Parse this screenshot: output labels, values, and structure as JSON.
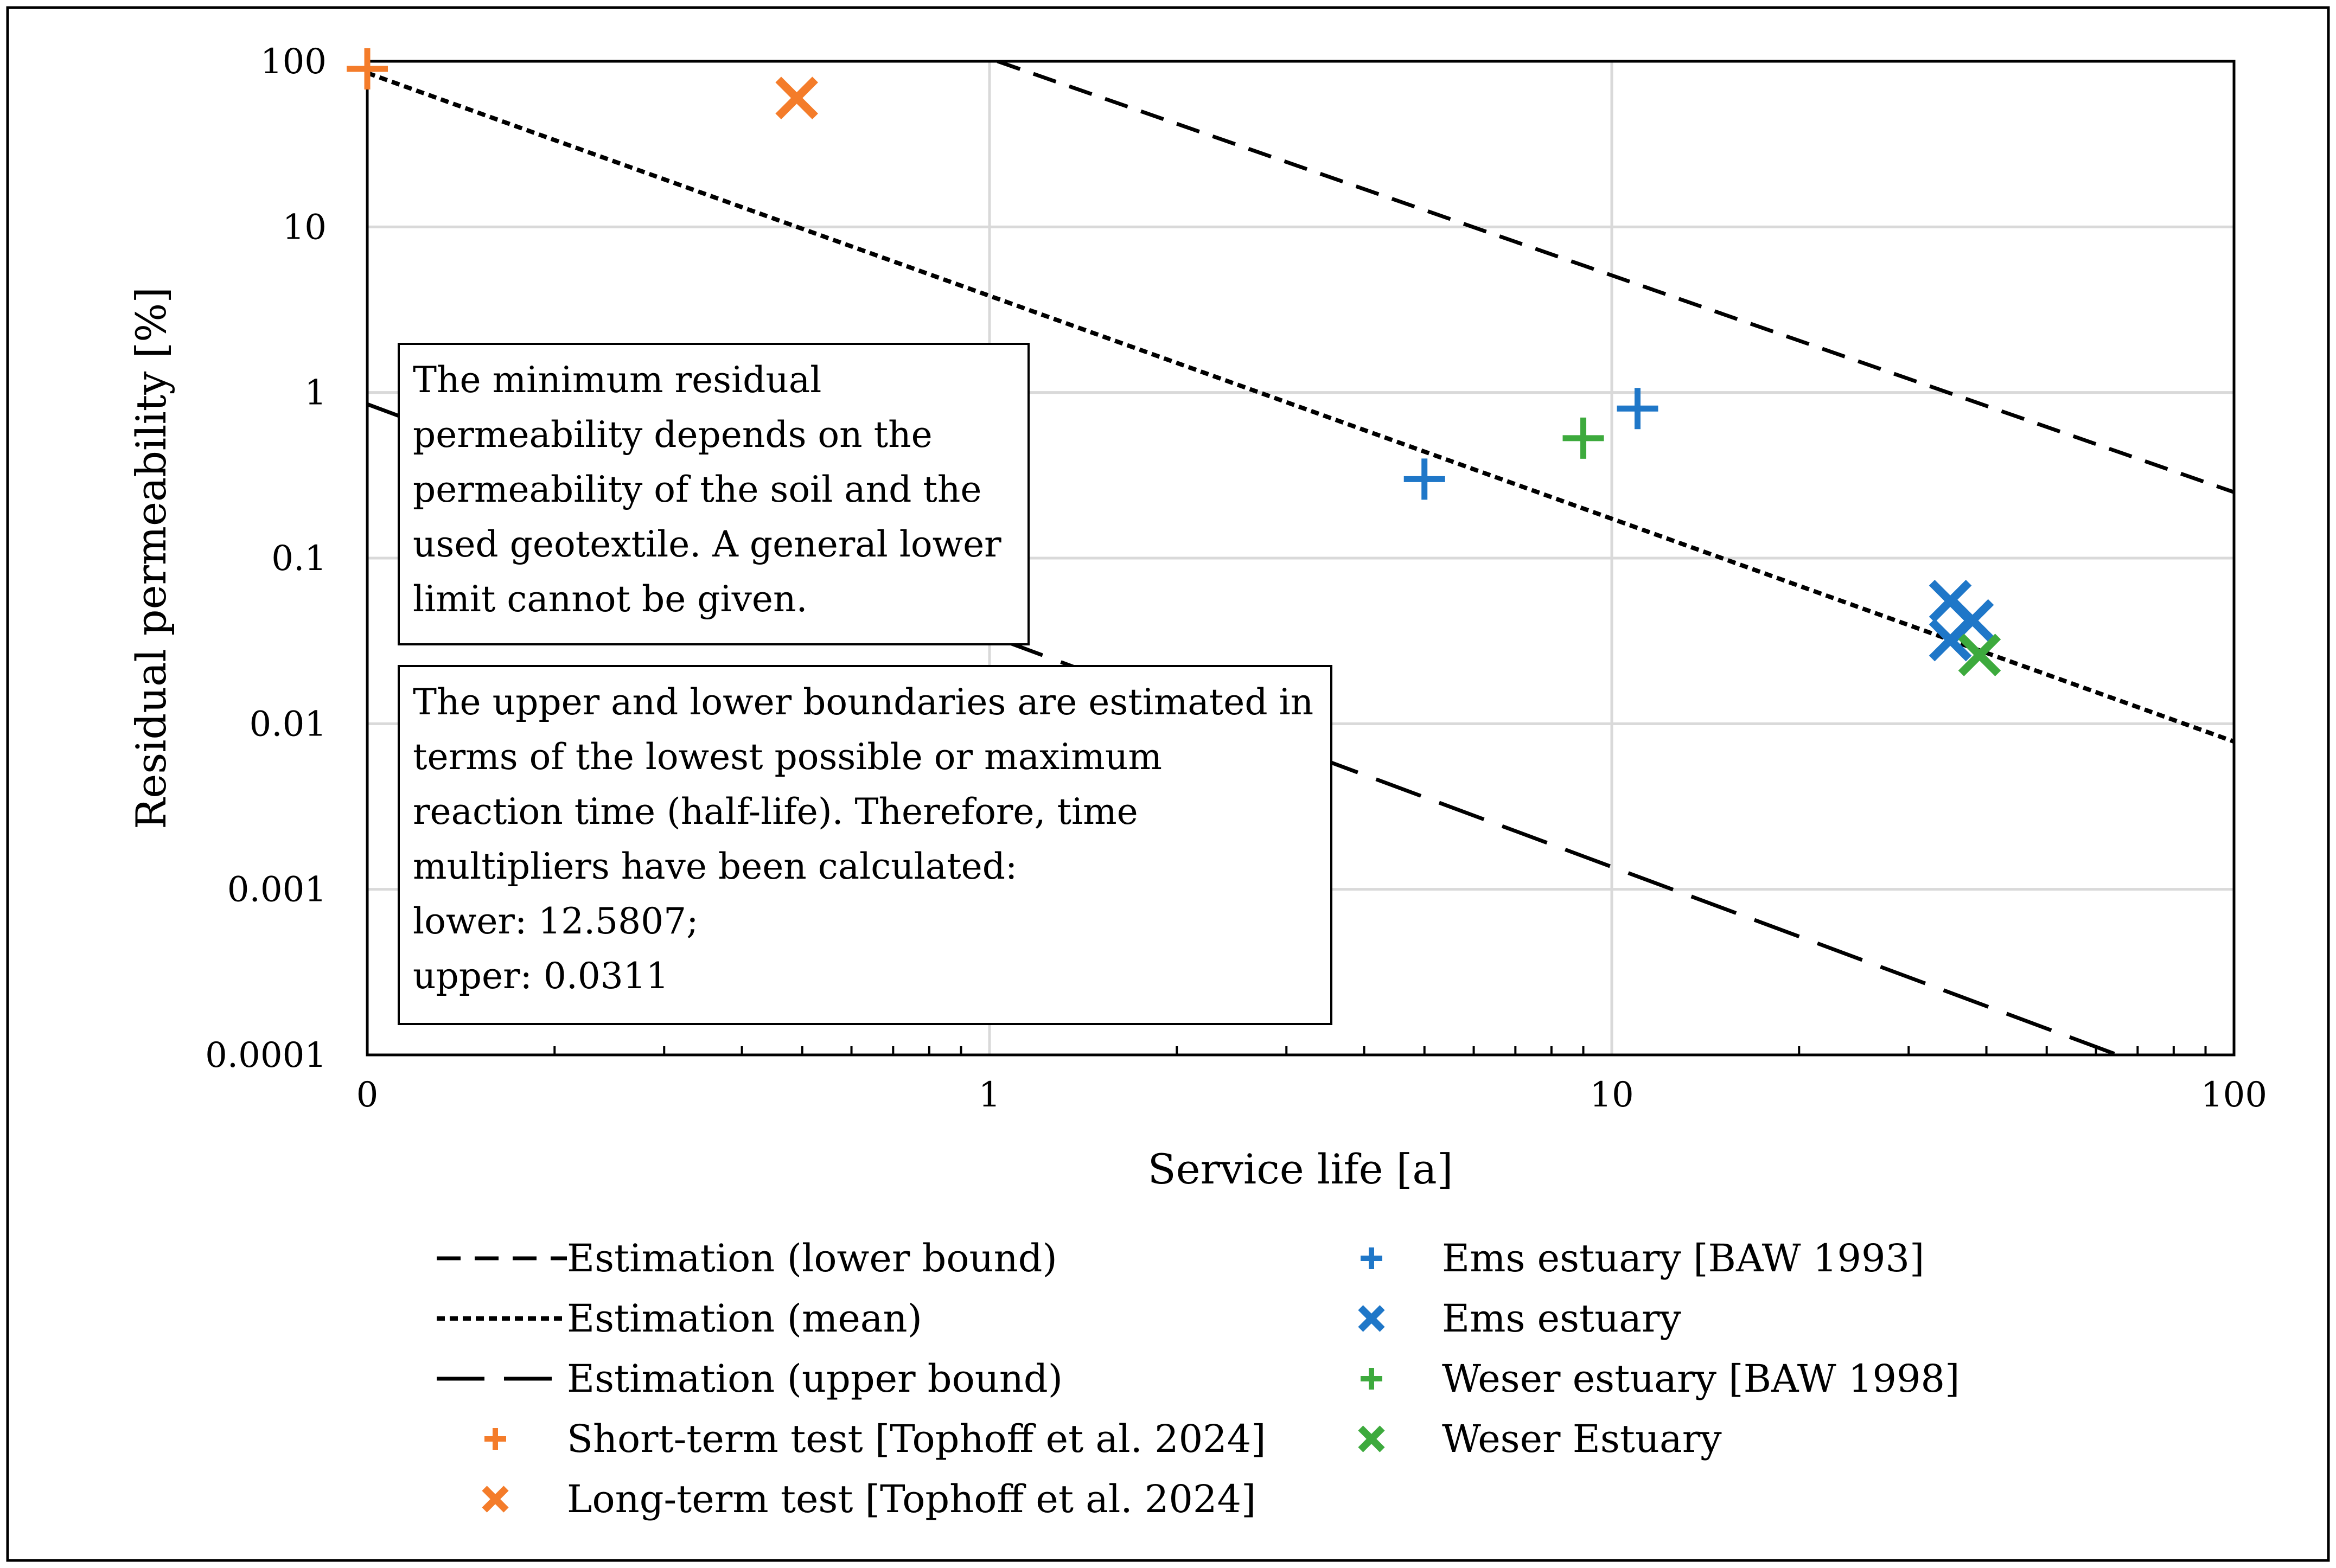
{
  "chart_data": {
    "type": "scatter",
    "xscale": "log",
    "yscale": "log",
    "xlabel": "Service life [a]",
    "ylabel": "Residual permeability [%]",
    "xlim": [
      0.1,
      100
    ],
    "ylim": [
      0.0001,
      100
    ],
    "xticks": [
      {
        "value": 0.1,
        "label": "0"
      },
      {
        "value": 1,
        "label": "1"
      },
      {
        "value": 10,
        "label": "10"
      },
      {
        "value": 100,
        "label": "100"
      }
    ],
    "yticks": [
      {
        "value": 100,
        "label": "100"
      },
      {
        "value": 10,
        "label": "10"
      },
      {
        "value": 1,
        "label": "1"
      },
      {
        "value": 0.1,
        "label": "0.1"
      },
      {
        "value": 0.01,
        "label": "0.01"
      },
      {
        "value": 0.001,
        "label": "0.001"
      },
      {
        "value": 0.0001,
        "label": "0.0001"
      }
    ],
    "grid": true,
    "lines": [
      {
        "name": "Estimation (lower bound)",
        "style": "dashed",
        "color": "#000000",
        "points": [
          [
            1.03,
            100
          ],
          [
            100,
            0.25
          ]
        ]
      },
      {
        "name": "Estimation (mean)",
        "style": "dotted",
        "color": "#000000",
        "points": [
          [
            0.1,
            85
          ],
          [
            100,
            0.0078
          ]
        ]
      },
      {
        "name": "Estimation (upper bound)",
        "style": "longdash",
        "color": "#000000",
        "points": [
          [
            0.1,
            0.85
          ],
          [
            65,
            0.0001
          ]
        ]
      }
    ],
    "series": [
      {
        "name": "Short-term test [Tophoff et al. 2024]",
        "marker": "plus",
        "color": "#F47C2A",
        "points": [
          [
            0.1,
            90
          ]
        ]
      },
      {
        "name": "Long-term test  [Tophoff et al. 2024]",
        "marker": "x",
        "color": "#F47C2A",
        "points": [
          [
            0.49,
            60
          ]
        ]
      },
      {
        "name": "Ems estuary [BAW 1993]",
        "marker": "plus",
        "color": "#1F77C8",
        "points": [
          [
            5,
            0.3
          ],
          [
            11,
            0.8
          ]
        ]
      },
      {
        "name": "Ems estuary",
        "marker": "x",
        "color": "#1F77C8",
        "points": [
          [
            35,
            0.055
          ],
          [
            38,
            0.042
          ],
          [
            35,
            0.032
          ]
        ]
      },
      {
        "name": "Weser estuary [BAW 1998]",
        "marker": "plus",
        "color": "#3DAA3D",
        "points": [
          [
            9,
            0.53
          ]
        ]
      },
      {
        "name": "Weser Estuary",
        "marker": "x",
        "color": "#3DAA3D",
        "points": [
          [
            39,
            0.026
          ]
        ]
      }
    ],
    "annotations": [
      {
        "id": "note1",
        "lines": [
          "The minimum residual",
          "permeability depends on the",
          "permeability of the soil and the",
          "used geotextile. A general lower",
          "limit cannot be given."
        ]
      },
      {
        "id": "note2",
        "lines": [
          "The upper and lower boundaries are estimated in",
          "terms of the lowest possible or maximum",
          "reaction time (half-life). Therefore, time",
          "multipliers have been calculated:",
          "lower: 12.5807;",
          "upper: 0.0311"
        ]
      }
    ],
    "legend": {
      "position": "bottom",
      "items": [
        {
          "label": "Estimation (lower bound)",
          "kind": "line",
          "style": "dashed",
          "color": "#000000"
        },
        {
          "label": "Estimation (mean)",
          "kind": "line",
          "style": "dotted",
          "color": "#000000"
        },
        {
          "label": "Estimation (upper bound)",
          "kind": "line",
          "style": "longdash",
          "color": "#000000"
        },
        {
          "label": "Short-term test [Tophoff et al. 2024]",
          "kind": "marker",
          "marker": "plus",
          "color": "#F47C2A"
        },
        {
          "label": "Long-term test  [Tophoff et al. 2024]",
          "kind": "marker",
          "marker": "x",
          "color": "#F47C2A"
        },
        {
          "label": "Ems estuary [BAW 1993]",
          "kind": "marker",
          "marker": "plus",
          "color": "#1F77C8"
        },
        {
          "label": "Ems estuary",
          "kind": "marker",
          "marker": "x",
          "color": "#1F77C8"
        },
        {
          "label": "Weser estuary [BAW 1998]",
          "kind": "marker",
          "marker": "plus",
          "color": "#3DAA3D"
        },
        {
          "label": "Weser Estuary",
          "kind": "marker",
          "marker": "x",
          "color": "#3DAA3D"
        }
      ]
    }
  }
}
